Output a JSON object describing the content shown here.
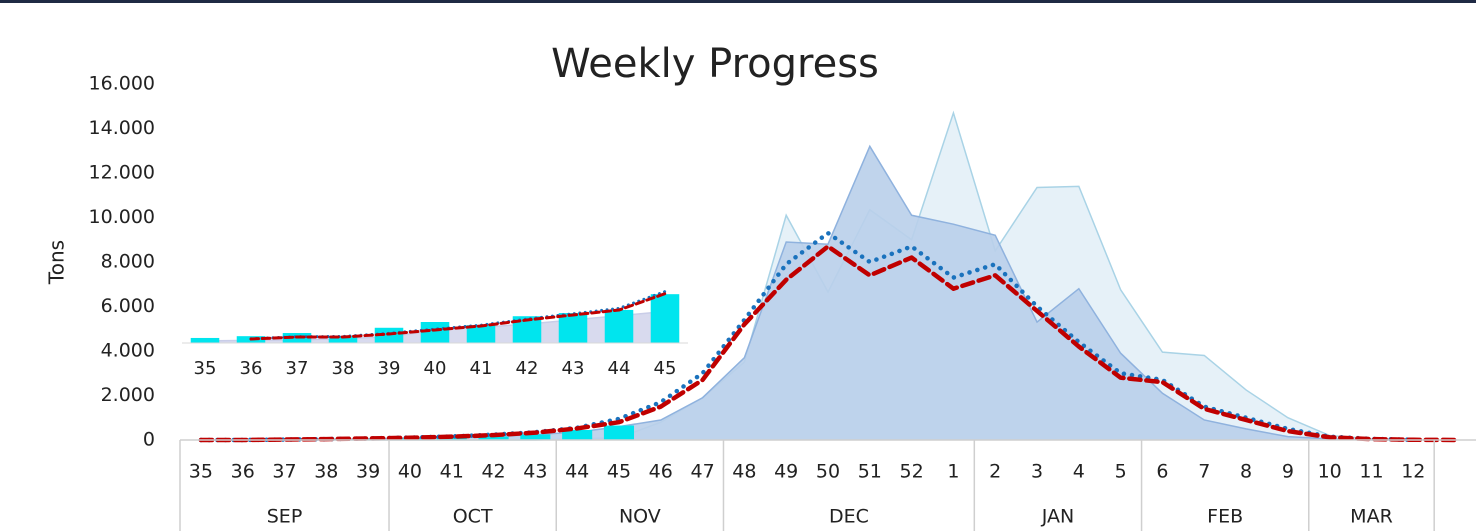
{
  "chart_data": [
    {
      "type": "combo",
      "title": "Weekly Progress",
      "y_label": "Tons",
      "categories": [
        35,
        36,
        37,
        38,
        39,
        40,
        41,
        42,
        43,
        44,
        45,
        46,
        47,
        48,
        49,
        50,
        51,
        52,
        1,
        2,
        3,
        4,
        5,
        6,
        7,
        8,
        9,
        10,
        11,
        12,
        null
      ],
      "month_groups": [
        {
          "name": "SEP",
          "count": 5
        },
        {
          "name": "OCT",
          "count": 4
        },
        {
          "name": "NOV",
          "count": 4
        },
        {
          "name": "DEC",
          "count": 6
        },
        {
          "name": "JAN",
          "count": 4
        },
        {
          "name": "FEB",
          "count": 4
        },
        {
          "name": "MAR",
          "count": 3
        }
      ],
      "ylim": [
        0,
        16000
      ],
      "yticks": [
        0,
        {
          "value": 2000,
          "label": "2.000"
        },
        {
          "value": 4000,
          "label": "4.000"
        },
        {
          "value": 6000,
          "label": "6.000"
        },
        {
          "value": 8000,
          "label": "8.000"
        },
        {
          "value": 10000,
          "label": "10.000"
        },
        {
          "value": 12000,
          "label": "12.000"
        },
        {
          "value": 14000,
          "label": "14.000"
        },
        {
          "value": 16000,
          "label": "16.000"
        }
      ],
      "series": [
        {
          "type": "area",
          "color": "#a9d3e6",
          "fill": "#e3eff7",
          "values": [
            0,
            0,
            0,
            0,
            0,
            0,
            0,
            0,
            0,
            50,
            100,
            800,
            1900,
            3500,
            10100,
            6650,
            10350,
            9000,
            14700,
            8500,
            11350,
            11400,
            6750,
            3950,
            3800,
            2250,
            1000,
            200,
            50,
            0,
            null
          ]
        },
        {
          "type": "area",
          "color": "#8fb2de",
          "fill": "#b9cfea",
          "values": [
            0,
            0,
            0,
            0,
            50,
            80,
            100,
            150,
            250,
            350,
            600,
            900,
            1900,
            3700,
            8900,
            8800,
            13200,
            10100,
            9700,
            9200,
            5300,
            6800,
            3900,
            2100,
            900,
            500,
            150,
            50,
            0,
            0,
            null
          ]
        },
        {
          "type": "bar",
          "color": "#00e5ee",
          "values": [
            10,
            20,
            30,
            40,
            50,
            70,
            100,
            150,
            250,
            450,
            650,
            null,
            null,
            null,
            null,
            null,
            null,
            null,
            null,
            null,
            null,
            null,
            null,
            null,
            null,
            null,
            null,
            null,
            null,
            null,
            null
          ]
        },
        {
          "type": "line",
          "style": "dotted",
          "color": "#1a72bd",
          "values": [
            0,
            0,
            20,
            40,
            70,
            110,
            160,
            240,
            350,
            550,
            950,
            1700,
            3000,
            5400,
            7900,
            9300,
            8000,
            8700,
            7300,
            7900,
            6000,
            4400,
            3000,
            2700,
            1500,
            1000,
            500,
            150,
            50,
            10,
            null
          ]
        },
        {
          "type": "line",
          "style": "dashed",
          "color": "#c00000",
          "values": [
            0,
            0,
            20,
            40,
            70,
            100,
            150,
            220,
            330,
            520,
            800,
            1500,
            2700,
            5200,
            7200,
            8700,
            7400,
            8200,
            6800,
            7400,
            5800,
            4200,
            2800,
            2600,
            1400,
            900,
            400,
            120,
            40,
            10,
            0
          ]
        }
      ]
    },
    {
      "type": "combo",
      "categories": [
        35,
        36,
        37,
        38,
        39,
        40,
        41,
        42,
        43,
        44,
        45
      ],
      "ylim": [
        0,
        600
      ],
      "series": [
        {
          "type": "area",
          "color": "#c9cde8",
          "fill": "#d4d6ec",
          "values": [
            20,
            25,
            30,
            40,
            60,
            120,
            150,
            180,
            220,
            260,
            300
          ]
        },
        {
          "type": "bar",
          "color": "#00e5ee",
          "values": [
            48,
            65,
            95,
            65,
            145,
            200,
            170,
            255,
            285,
            315,
            465
          ]
        },
        {
          "type": "line",
          "style": "dotted",
          "color": "#1a72bd",
          "values": [
            null,
            40,
            60,
            62,
            92,
            132,
            170,
            228,
            278,
            330,
            490
          ]
        },
        {
          "type": "line",
          "style": "dashed",
          "color": "#c00000",
          "values": [
            null,
            38,
            57,
            57,
            86,
            124,
            162,
            219,
            267,
            314,
            470
          ]
        }
      ]
    }
  ]
}
